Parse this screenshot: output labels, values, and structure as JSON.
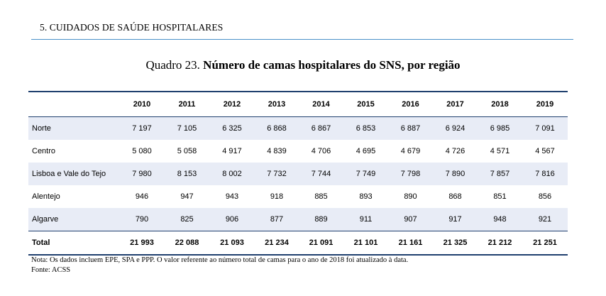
{
  "section_header": "5. CUIDADOS DE SAÚDE HOSPITALARES",
  "caption": {
    "prefix": "Quadro 23.",
    "title": "Número de camas hospitalares do SNS, por região"
  },
  "table": {
    "years": [
      "2010",
      "2011",
      "2012",
      "2013",
      "2014",
      "2015",
      "2016",
      "2017",
      "2018",
      "2019"
    ],
    "rows": [
      {
        "region": "Norte",
        "values": [
          "7 197",
          "7 105",
          "6 325",
          "6 868",
          "6 867",
          "6 853",
          "6 887",
          "6 924",
          "6 985",
          "7 091"
        ]
      },
      {
        "region": "Centro",
        "values": [
          "5 080",
          "5 058",
          "4 917",
          "4 839",
          "4 706",
          "4 695",
          "4 679",
          "4 726",
          "4 571",
          "4 567"
        ]
      },
      {
        "region": "Lisboa e Vale do Tejo",
        "values": [
          "7 980",
          "8 153",
          "8 002",
          "7 732",
          "7 744",
          "7 749",
          "7 798",
          "7 890",
          "7 857",
          "7 816"
        ]
      },
      {
        "region": "Alentejo",
        "values": [
          "946",
          "947",
          "943",
          "918",
          "885",
          "893",
          "890",
          "868",
          "851",
          "856"
        ]
      },
      {
        "region": "Algarve",
        "values": [
          "790",
          "825",
          "906",
          "877",
          "889",
          "911",
          "907",
          "917",
          "948",
          "921"
        ]
      },
      {
        "region": "Total",
        "values": [
          "21 993",
          "22 088",
          "21 093",
          "21 234",
          "21 091",
          "21 101",
          "21 161",
          "21 325",
          "21 212",
          "21 251"
        ]
      }
    ]
  },
  "footnotes": {
    "note": "Nota: Os dados incluem EPE, SPA e PPP. O valor referente ao número total de camas para o ano de 2018 foi atualizado à data.",
    "source": "Fonte: ACSS"
  },
  "colors": {
    "header_rule": "#4a90c8",
    "table_rule": "#1f3f6e",
    "row_shade": "#e8ecf6"
  }
}
